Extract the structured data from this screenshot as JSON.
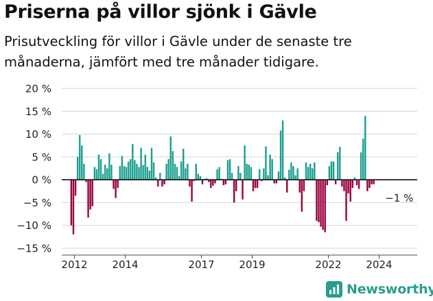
{
  "title": "Priserna på villor sjönk i Gävle",
  "subtitle": "Prisutveckling för villor i Gävle under de senaste tre månaderna, jämfört med tre månader tidigare.",
  "logo_text": "Newsworthy",
  "colors": {
    "positive": "#1a9e8f",
    "negative": "#99003d",
    "grid": "#d4d4d4",
    "text": "#222222",
    "brand": "#2a9d8f"
  },
  "chart_data": {
    "type": "bar",
    "ylim": [
      -15,
      20
    ],
    "yticks": [
      20,
      15,
      10,
      5,
      0,
      -5,
      -10,
      -15
    ],
    "ytick_labels": [
      "20 %",
      "15 %",
      "10 %",
      "5 %",
      "0 %",
      "−5 %",
      "−10 %",
      "−15 %"
    ],
    "xlim": [
      2011.5,
      2025.5
    ],
    "xticks": [
      2012,
      2014,
      2017,
      2019,
      2022,
      2024
    ],
    "xtick_labels": [
      "2012",
      "2014",
      "2017",
      "2019",
      "2022",
      "2024"
    ],
    "x_start": 2011.875,
    "step_years": 0.0833,
    "annotation": {
      "text": "−1 %",
      "x": 2024.83
    },
    "values": [
      -10,
      -12,
      -3.5,
      5,
      9.8,
      7.5,
      3.5,
      -0.5,
      -8.3,
      -6.5,
      -5.8,
      2.8,
      2.3,
      5.5,
      4.5,
      1.3,
      3.3,
      2.5,
      5.8,
      3.3,
      -2,
      -4,
      -1.8,
      3,
      5.2,
      3,
      2.8,
      4,
      4.5,
      7.8,
      4.3,
      3.5,
      2.8,
      7,
      3.2,
      5.5,
      2.8,
      2,
      7,
      3.8,
      0.5,
      -1.5,
      1.5,
      -1.5,
      -1,
      3.5,
      4.5,
      9.5,
      6.3,
      3.5,
      2.8,
      0.8,
      4,
      6.8,
      2.5,
      3.5,
      -1.5,
      -4.8,
      -0.3,
      3.5,
      1.3,
      0.8,
      -1,
      0.2,
      0.3,
      -0.5,
      -1.8,
      -1.3,
      -0.8,
      2.3,
      2.8,
      0.2,
      -1.2,
      -1,
      4.3,
      4.5,
      1.5,
      -5,
      -2.5,
      3,
      1.5,
      -4.3,
      7.5,
      3.5,
      3.3,
      2.8,
      -2.5,
      -1.8,
      -1.8,
      2.3,
      -0.3,
      2.5,
      7.3,
      1,
      5.5,
      4.5,
      -0.8,
      -0.8,
      1.8,
      10.8,
      13,
      0.5,
      -2.8,
      2.2,
      3.8,
      3,
      1,
      2.5,
      -2.8,
      -7,
      -2.5,
      3.8,
      2.8,
      3.5,
      2.5,
      3.8,
      -9,
      -9.3,
      -10.3,
      -11,
      -11.5,
      -1.2,
      3,
      4,
      4,
      -1,
      6,
      7.2,
      -1.5,
      -2.5,
      -9,
      -3,
      -4.8,
      -1.8,
      0.5,
      -1.2,
      -2,
      6,
      9,
      14,
      -2.5,
      -1.8,
      -1,
      -1
    ]
  }
}
